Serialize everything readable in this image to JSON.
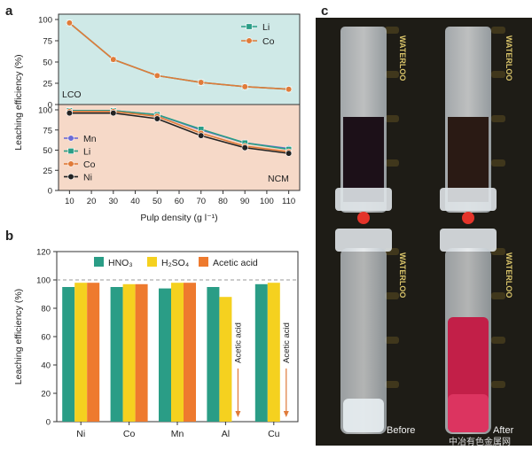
{
  "panels": {
    "a": "a",
    "b": "b",
    "c": "c"
  },
  "chart_data": [
    {
      "type": "line",
      "panel": "a",
      "ylabel": "Leaching efficiency (%)",
      "xlabel": "Pulp density (g l⁻¹)",
      "x": [
        10,
        30,
        50,
        70,
        90,
        110
      ],
      "xticks": [
        10,
        20,
        30,
        40,
        50,
        60,
        70,
        80,
        90,
        100,
        110
      ],
      "subplots": [
        {
          "label": "LCO",
          "ylim": [
            0,
            100
          ],
          "yticks": [
            0,
            25,
            50,
            75,
            100
          ],
          "background": "#cfe9e7",
          "legend": "top-right",
          "series": [
            {
              "name": "Li",
              "color": "#2a9d86",
              "marker": "square",
              "values": [
                96,
                53,
                34,
                26,
                21,
                18
              ]
            },
            {
              "name": "Co",
              "color": "#e07b39",
              "marker": "circle",
              "values": [
                96,
                53,
                34,
                26,
                21,
                18
              ]
            }
          ]
        },
        {
          "label": "NCM",
          "ylim": [
            0,
            100
          ],
          "yticks": [
            0,
            25,
            50,
            75,
            100
          ],
          "background": "#f6d9c8",
          "legend": "left",
          "series": [
            {
              "name": "Mn",
              "color": "#6b6bd6",
              "marker": "circle",
              "values": [
                99,
                99,
                94,
                75,
                59,
                52
              ]
            },
            {
              "name": "Li",
              "color": "#2a9d86",
              "marker": "square",
              "values": [
                99,
                99,
                94,
                76,
                59,
                51
              ]
            },
            {
              "name": "Co",
              "color": "#e07b39",
              "marker": "circle",
              "values": [
                98,
                98,
                92,
                71,
                55,
                48
              ]
            },
            {
              "name": "Ni",
              "color": "#222222",
              "marker": "circle",
              "values": [
                96,
                96,
                89,
                68,
                53,
                46
              ]
            }
          ]
        }
      ]
    },
    {
      "type": "bar",
      "panel": "b",
      "ylabel": "Leaching efficiency (%)",
      "categories": [
        "Ni",
        "Co",
        "Mn",
        "Al",
        "Cu"
      ],
      "ylim": [
        0,
        120
      ],
      "yticks": [
        0,
        20,
        40,
        60,
        80,
        100,
        120
      ],
      "reference_line": 100,
      "legend": "top",
      "series": [
        {
          "name": "HNO₃",
          "color": "#2a9d86",
          "values": [
            95,
            95,
            94,
            95,
            97
          ]
        },
        {
          "name": "H₂SO₄",
          "color": "#f5d11f",
          "values": [
            98,
            97,
            98,
            88,
            98
          ]
        },
        {
          "name": "Acetic acid",
          "color": "#ee7a2e",
          "values": [
            98,
            97,
            98,
            null,
            null
          ]
        }
      ],
      "annotations": [
        {
          "category": "Al",
          "text": "Acetic acid"
        },
        {
          "category": "Cu",
          "text": "Acetic acid"
        }
      ]
    }
  ],
  "photo": {
    "before_label": "Before",
    "after_label": "After",
    "brand_text": "WATERLOO",
    "watermark": "中冶有色金属网"
  }
}
